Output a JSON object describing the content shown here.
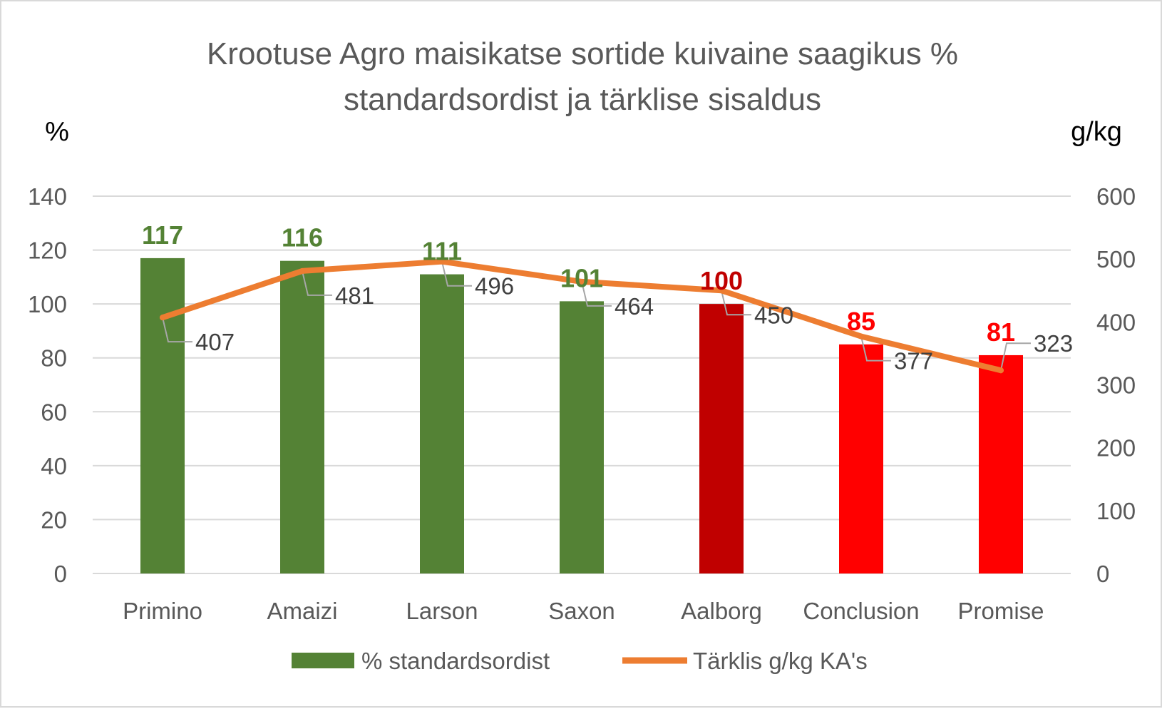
{
  "chart_data": {
    "type": "bar",
    "title_lines": [
      "Krootuse Agro maisikatse sortide kuivaine saagikus %",
      "standardsordist ja tärklise sisaldus"
    ],
    "left_axis_unit": "%",
    "right_axis_unit": "g/kg",
    "categories": [
      "Primino",
      "Amaizi",
      "Larson",
      "Saxon",
      "Aalborg",
      "Conclusion",
      "Promise"
    ],
    "series": [
      {
        "name": "% standardsordist",
        "type": "bar",
        "axis": "left",
        "values": [
          117,
          116,
          111,
          101,
          100,
          85,
          81
        ],
        "labels": [
          "117",
          "116",
          "111",
          "101",
          "100",
          "85",
          "81"
        ],
        "colors": [
          "#548235",
          "#548235",
          "#548235",
          "#548235",
          "#c00000",
          "#ff0000",
          "#ff0000"
        ],
        "legend_color": "#548235"
      },
      {
        "name": "Tärklis g/kg KA's",
        "type": "line",
        "axis": "right",
        "values": [
          407,
          481,
          496,
          464,
          450,
          377,
          323
        ],
        "labels": [
          "407",
          "481",
          "496",
          "464",
          "450",
          "377",
          "323"
        ],
        "color": "#ed7d31"
      }
    ],
    "left_axis": {
      "min": 0,
      "max": 140,
      "step": 20,
      "ticks": [
        "0",
        "20",
        "40",
        "60",
        "80",
        "100",
        "120",
        "140"
      ]
    },
    "right_axis": {
      "min": 0,
      "max": 600,
      "step": 100,
      "ticks": [
        "0",
        "100",
        "200",
        "300",
        "400",
        "500",
        "600"
      ]
    },
    "grid": true,
    "legend_position": "bottom"
  }
}
